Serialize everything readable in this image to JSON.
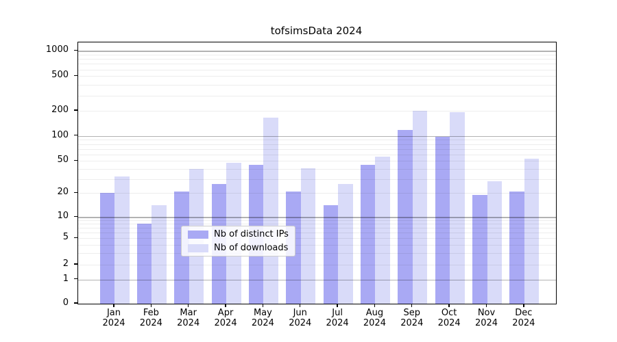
{
  "chart_data": {
    "type": "bar",
    "title": "tofsimsData 2024",
    "categories": [
      "Jan",
      "Feb",
      "Mar",
      "Apr",
      "May",
      "Jun",
      "Jul",
      "Aug",
      "Sep",
      "Oct",
      "Nov",
      "Dec"
    ],
    "category_sublabel": "2024",
    "series": [
      {
        "name": "Nb of distinct IPs",
        "color": "#a9a9f4",
        "values": [
          20,
          8,
          21,
          26,
          45,
          21,
          14,
          45,
          119,
          98,
          19,
          21
        ]
      },
      {
        "name": "Nb of downloads",
        "color": "#d9dbf9",
        "values": [
          32,
          14,
          40,
          48,
          165,
          41,
          26,
          56,
          199,
          194,
          28,
          53
        ]
      }
    ],
    "y_ticks": [
      0,
      1,
      2,
      5,
      10,
      20,
      50,
      100,
      200,
      500,
      1000
    ],
    "y_major_gridlines": [
      1,
      10,
      100,
      1000
    ],
    "y_minor_gridlines": [
      2,
      3,
      4,
      5,
      6,
      7,
      8,
      9,
      20,
      30,
      40,
      50,
      60,
      70,
      80,
      90,
      200,
      300,
      400,
      500,
      600,
      700,
      800,
      900
    ],
    "scale": "symlog",
    "ylim": [
      0,
      1200
    ],
    "grid": true,
    "legend_position": "lower center",
    "colors": {
      "axis": "#000000",
      "major_grid": "#b3b3b3",
      "minor_grid": "#ececec",
      "background": "#ffffff"
    }
  }
}
